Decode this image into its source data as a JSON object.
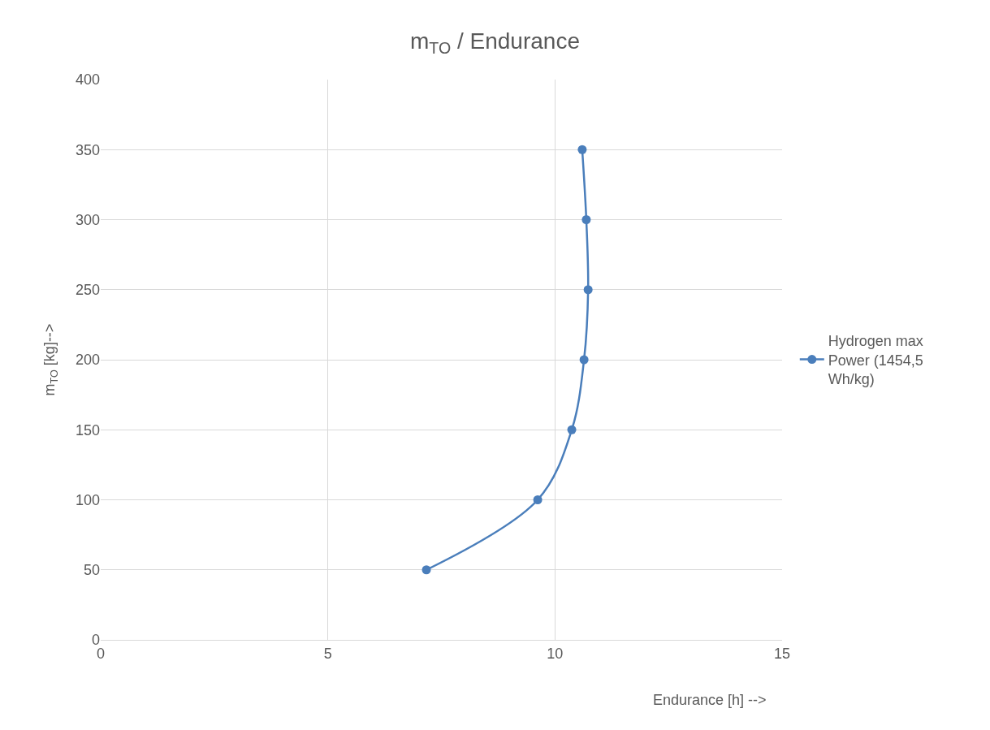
{
  "chart_data": {
    "type": "line",
    "title": "m$_{TO}$ / Endurance",
    "xlabel": "Endurance [h] -->",
    "ylabel": "m$_{TO}$ [kg]-->",
    "x": [
      7.17,
      9.62,
      10.37,
      10.64,
      10.73,
      10.69,
      10.6
    ],
    "series": [
      {
        "name": "Hydrogen max Power (1454,5 Wh/kg)",
        "color": "#4a7ebb",
        "values": [
          50,
          100,
          150,
          200,
          250,
          300,
          350
        ]
      }
    ],
    "xlim": [
      0,
      15
    ],
    "xticks": [
      0,
      5,
      10,
      15
    ],
    "ylim": [
      0,
      400
    ],
    "yticks": [
      0,
      50,
      100,
      150,
      200,
      250,
      300,
      350,
      400
    ],
    "grid": true,
    "legend": "right",
    "marker": "circle",
    "line_style": "solid"
  }
}
